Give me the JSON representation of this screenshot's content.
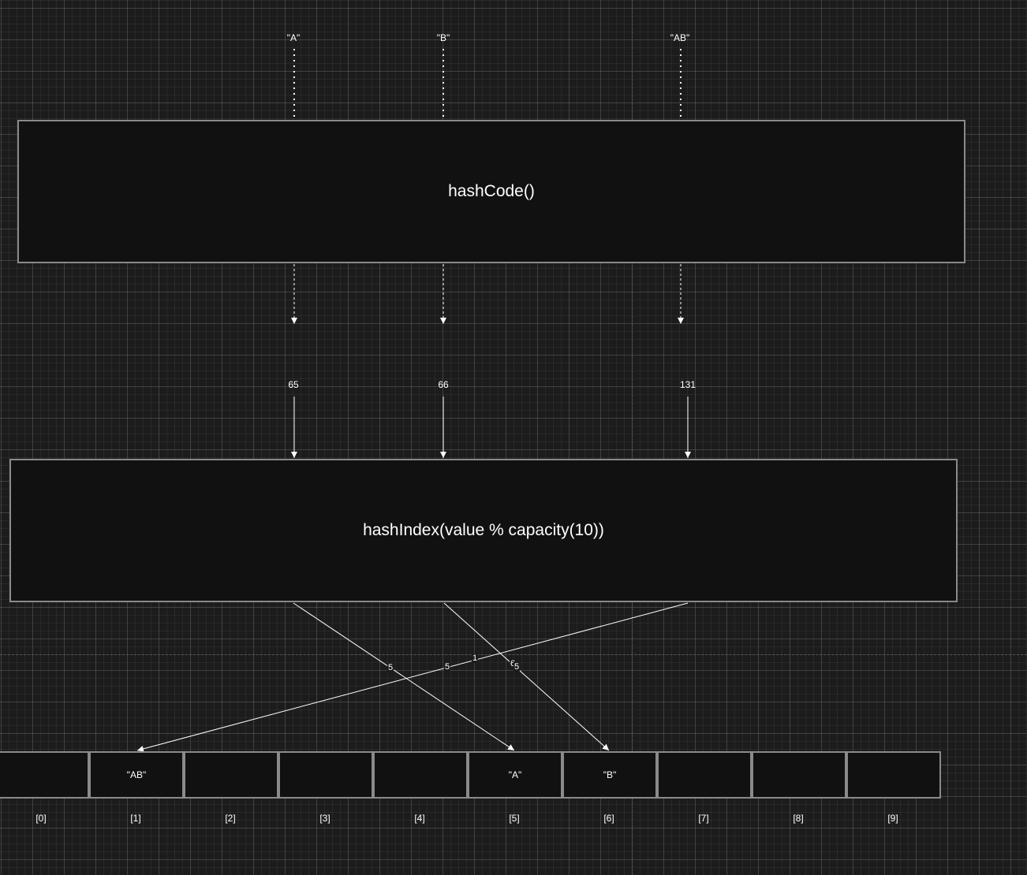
{
  "inputs": [
    {
      "label": "\"A\""
    },
    {
      "label": "\"B\""
    },
    {
      "label": "\"AB\""
    }
  ],
  "hash_box": {
    "label": "hashCode()"
  },
  "hash_values": [
    {
      "label": "65"
    },
    {
      "label": "66"
    },
    {
      "label": "131"
    }
  ],
  "index_box": {
    "label": "hashIndex(value % capacity(10))"
  },
  "edge_labels": [
    {
      "label": "5"
    },
    {
      "label": "5"
    },
    {
      "label": "1"
    },
    {
      "label": "6"
    },
    {
      "label": "5"
    }
  ],
  "buckets": [
    {
      "index": "[0]",
      "value": ""
    },
    {
      "index": "[1]",
      "value": "\"AB\""
    },
    {
      "index": "[2]",
      "value": ""
    },
    {
      "index": "[3]",
      "value": ""
    },
    {
      "index": "[4]",
      "value": ""
    },
    {
      "index": "[5]",
      "value": "\"A\""
    },
    {
      "index": "[6]",
      "value": "\"B\""
    },
    {
      "index": "[7]",
      "value": ""
    },
    {
      "index": "[8]",
      "value": ""
    },
    {
      "index": "[9]",
      "value": ""
    }
  ]
}
